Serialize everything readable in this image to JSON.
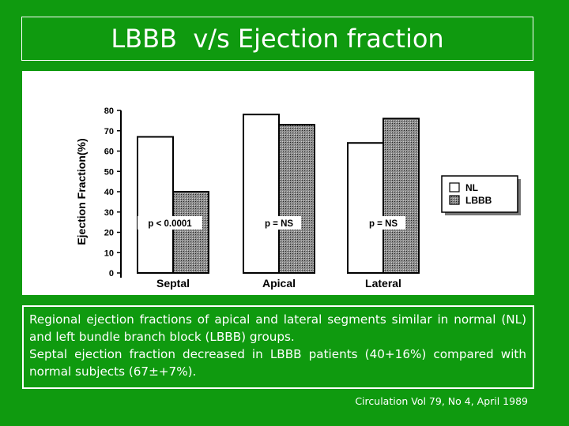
{
  "slide": {
    "title": "LBBB  v/s Ejection fraction",
    "caption_lines": [
      "Regional ejection fractions of apical and lateral segments similar in normal (NL) and left bundle branch block (LBBB) groups.",
      "Septal ejection fraction decreased in LBBB patients (40+16%) compared with normal subjects (67±+7%)."
    ],
    "citation": "Circulation Vol 79, No 4, April 1989"
  },
  "chart_data": {
    "type": "bar",
    "ylabel": "Ejection Fraction(%)",
    "ylim": [
      0,
      80
    ],
    "yticks": [
      "0",
      "10",
      "20",
      "30",
      "40",
      "50",
      "60",
      "70",
      "80"
    ],
    "categories": [
      "Septal",
      "Apical",
      "Lateral"
    ],
    "series": [
      {
        "name": "NL",
        "values": [
          67,
          78,
          64
        ]
      },
      {
        "name": "LBBB",
        "values": [
          40,
          73,
          76
        ]
      }
    ],
    "annotations": [
      "p < 0.0001",
      "p = NS",
      "p = NS"
    ],
    "legend_position": "right",
    "colors": {
      "NL": "#ffffff",
      "LBBB": "#9a9a9a",
      "outline": "#000000"
    }
  }
}
